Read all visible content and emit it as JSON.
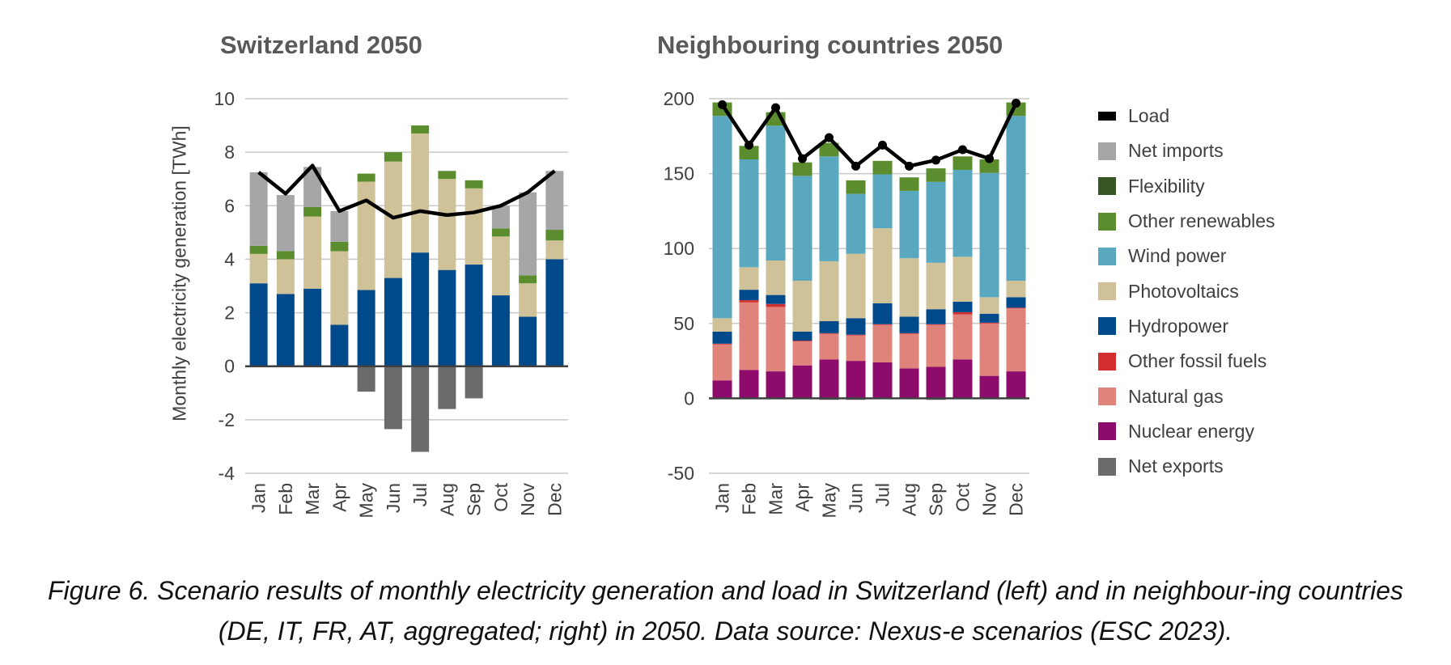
{
  "caption": "Figure 6. Scenario results of monthly electricity generation and load in Switzerland (left) and in neighbour-ing countries (DE, IT, FR, AT, aggregated; right) in 2050. Data source: Nexus-e scenarios (ESC 2023).",
  "legend": [
    {
      "name": "Load",
      "color": "#000000",
      "kind": "line"
    },
    {
      "name": "Net imports",
      "color": "#a6a6a6"
    },
    {
      "name": "Flexibility",
      "color": "#375623"
    },
    {
      "name": "Other renewables",
      "color": "#5b8c2e"
    },
    {
      "name": "Wind power",
      "color": "#5aa8bf"
    },
    {
      "name": "Photovoltaics",
      "color": "#cfc299"
    },
    {
      "name": "Hydropower",
      "color": "#004a8c"
    },
    {
      "name": "Other fossil fuels",
      "color": "#d32f2f"
    },
    {
      "name": "Natural gas",
      "color": "#e0847b"
    },
    {
      "name": "Nuclear energy",
      "color": "#8c0b6b"
    },
    {
      "name": "Net exports",
      "color": "#6b6b6b"
    }
  ],
  "chart_data": [
    {
      "type": "bar",
      "stacked": true,
      "title": "Switzerland 2050",
      "ylabel": "Monthly electricity generation [TWh]",
      "xlabel": "",
      "ylim": [
        -4,
        10
      ],
      "yticks": [
        -4,
        -2,
        0,
        2,
        4,
        6,
        8,
        10
      ],
      "grid": true,
      "categories": [
        "Jan",
        "Feb",
        "Mar",
        "Apr",
        "May",
        "Jun",
        "Jul",
        "Aug",
        "Sep",
        "Oct",
        "Nov",
        "Dec"
      ],
      "series": [
        {
          "name": "Hydropower",
          "values": [
            3.1,
            2.7,
            2.9,
            1.55,
            2.85,
            3.3,
            4.25,
            3.6,
            3.8,
            2.65,
            1.85,
            4.0
          ]
        },
        {
          "name": "Photovoltaics",
          "values": [
            1.1,
            1.3,
            2.7,
            2.75,
            4.05,
            4.35,
            4.45,
            3.4,
            2.85,
            2.2,
            1.25,
            0.7
          ]
        },
        {
          "name": "Other renewables",
          "values": [
            0.3,
            0.3,
            0.35,
            0.35,
            0.3,
            0.35,
            0.3,
            0.3,
            0.3,
            0.3,
            0.3,
            0.4
          ]
        },
        {
          "name": "Net imports",
          "values": [
            2.75,
            2.1,
            1.5,
            1.15,
            0,
            0,
            0,
            0,
            0,
            0.85,
            3.1,
            2.2
          ]
        },
        {
          "name": "Net exports",
          "values": [
            0,
            0,
            0,
            0,
            -0.95,
            -2.35,
            -3.2,
            -1.6,
            -1.2,
            0,
            0,
            0
          ]
        }
      ],
      "line": {
        "name": "Load",
        "values": [
          7.25,
          6.45,
          7.5,
          5.8,
          6.2,
          5.55,
          5.8,
          5.65,
          5.75,
          6.0,
          6.5,
          7.3
        ]
      }
    },
    {
      "type": "bar",
      "stacked": true,
      "title": "Neighbouring countries 2050",
      "xlabel": "",
      "ylabel": "",
      "ylim": [
        -50,
        200
      ],
      "yticks": [
        -50,
        0,
        50,
        100,
        150,
        200
      ],
      "grid": true,
      "categories": [
        "Jan",
        "Feb",
        "Mar",
        "Apr",
        "May",
        "Jun",
        "Jul",
        "Aug",
        "Sep",
        "Oct",
        "Nov",
        "Dec"
      ],
      "series": [
        {
          "name": "Nuclear energy",
          "values": [
            12,
            19,
            18,
            22,
            26,
            25,
            24,
            20,
            21,
            26,
            15,
            18
          ]
        },
        {
          "name": "Natural gas",
          "values": [
            24,
            45,
            43,
            16,
            17,
            17,
            25,
            23,
            28,
            30,
            35,
            42
          ]
        },
        {
          "name": "Other fossil fuels",
          "values": [
            0.5,
            1.5,
            2,
            0.5,
            0.5,
            0.5,
            0.5,
            0.5,
            0.5,
            1.5,
            0.5,
            0.5
          ]
        },
        {
          "name": "Hydropower",
          "values": [
            8,
            7,
            6,
            6,
            8,
            11,
            14,
            11,
            10,
            7,
            6,
            7
          ]
        },
        {
          "name": "Photovoltaics",
          "values": [
            9,
            15,
            23,
            34,
            40,
            43,
            50,
            39,
            31,
            30,
            11,
            11
          ]
        },
        {
          "name": "Wind power",
          "values": [
            135,
            72,
            90,
            70,
            70,
            40,
            36,
            45,
            54,
            58,
            83,
            110
          ]
        },
        {
          "name": "Other renewables",
          "values": [
            9,
            9,
            9,
            9,
            9,
            9,
            9,
            9,
            9,
            9,
            9,
            9
          ]
        },
        {
          "name": "Net exports",
          "values": [
            0,
            0,
            0,
            0,
            -1,
            -1,
            0,
            0,
            -1,
            0,
            0,
            0
          ]
        }
      ],
      "line": {
        "name": "Load",
        "values": [
          196,
          169,
          194,
          160,
          174,
          155,
          169,
          155,
          159,
          166,
          160,
          197
        ]
      }
    }
  ]
}
